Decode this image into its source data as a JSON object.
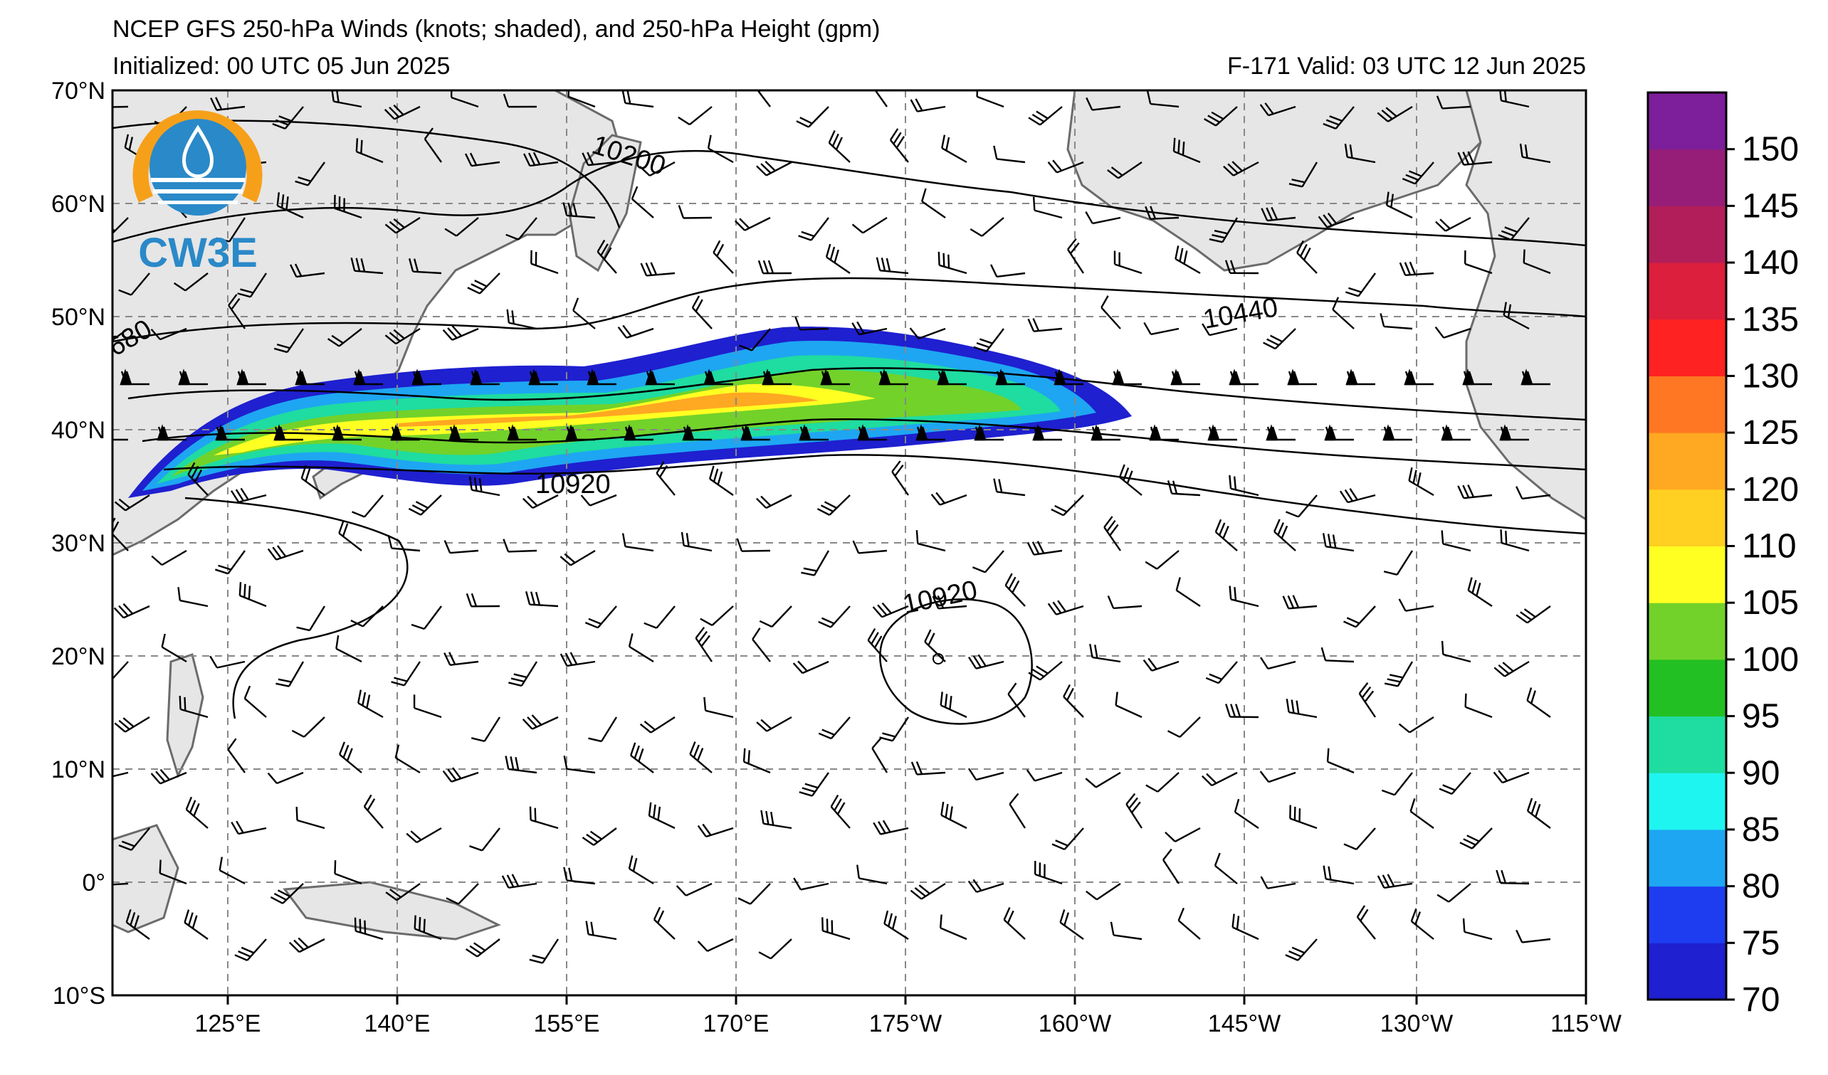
{
  "header": {
    "title": "NCEP GFS 250-hPa Winds (knots; shaded), and 250-hPa Height (gpm)",
    "initialized": "Initialized: 00 UTC 05 Jun 2025",
    "valid": "F-171  Valid: 03 UTC 12 Jun 2025"
  },
  "logo": {
    "text": "CW3E"
  },
  "axes": {
    "lat_labels": [
      "70°N",
      "60°N",
      "50°N",
      "40°N",
      "30°N",
      "20°N",
      "10°N",
      "0°",
      "10°S"
    ],
    "lon_labels": [
      "125°E",
      "140°E",
      "155°E",
      "170°E",
      "175°W",
      "160°W",
      "145°W",
      "130°W",
      "115°W"
    ]
  },
  "contour_labels": [
    "10200",
    "10440",
    "10920",
    "10920",
    "680"
  ],
  "colorbar": {
    "levels": [
      "70",
      "75",
      "80",
      "85",
      "90",
      "95",
      "100",
      "105",
      "110",
      "120",
      "125",
      "130",
      "135",
      "140",
      "145",
      "150"
    ],
    "colors": [
      "#1f20cf",
      "#1f3df0",
      "#1ea6f2",
      "#1ff5f0",
      "#1fdca0",
      "#22c022",
      "#72d22a",
      "#ffff22",
      "#ffcf22",
      "#ffa822",
      "#ff7722",
      "#ff2222",
      "#dc1f3c",
      "#b21e5a",
      "#961e78",
      "#7d1e9a"
    ]
  },
  "colors": {
    "land": "#e6e6e6",
    "coast": "#6b6b6b",
    "grid": "#888888"
  }
}
